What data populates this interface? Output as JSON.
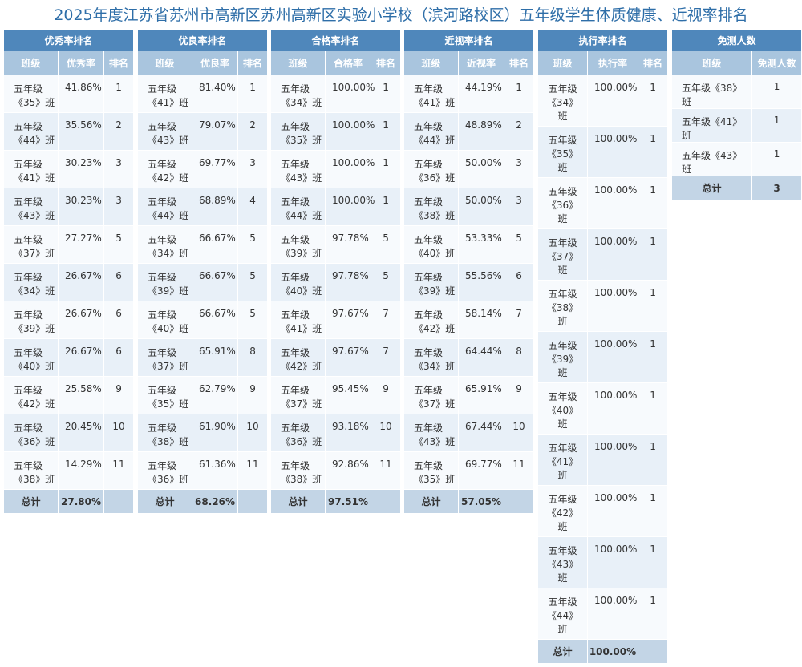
{
  "title": "2025年度江苏省苏州市高新区苏州高新区实验小学校（滨河路校区）五年级学生体质健康、近视率排名",
  "tables": [
    {
      "title": "优秀率排名",
      "headers": [
        "班级",
        "优秀率",
        "排名"
      ],
      "rows": [
        [
          "五年级《35》班",
          "41.86%",
          1
        ],
        [
          "五年级《44》班",
          "35.56%",
          2
        ],
        [
          "五年级《41》班",
          "30.23%",
          3
        ],
        [
          "五年级《43》班",
          "30.23%",
          3
        ],
        [
          "五年级《37》班",
          "27.27%",
          5
        ],
        [
          "五年级《34》班",
          "26.67%",
          6
        ],
        [
          "五年级《39》班",
          "26.67%",
          6
        ],
        [
          "五年级《40》班",
          "26.67%",
          6
        ],
        [
          "五年级《42》班",
          "25.58%",
          9
        ],
        [
          "五年级《36》班",
          "20.45%",
          10
        ],
        [
          "五年级《38》班",
          "14.29%",
          11
        ]
      ],
      "total": {
        "label": "总计",
        "value": "27.80%"
      }
    },
    {
      "title": "优良率排名",
      "headers": [
        "班级",
        "优良率",
        "排名"
      ],
      "rows": [
        [
          "五年级《41》班",
          "81.40%",
          1
        ],
        [
          "五年级《43》班",
          "79.07%",
          2
        ],
        [
          "五年级《42》班",
          "69.77%",
          3
        ],
        [
          "五年级《44》班",
          "68.89%",
          4
        ],
        [
          "五年级《34》班",
          "66.67%",
          5
        ],
        [
          "五年级《39》班",
          "66.67%",
          5
        ],
        [
          "五年级《40》班",
          "66.67%",
          5
        ],
        [
          "五年级《37》班",
          "65.91%",
          8
        ],
        [
          "五年级《35》班",
          "62.79%",
          9
        ],
        [
          "五年级《38》班",
          "61.90%",
          10
        ],
        [
          "五年级《36》班",
          "61.36%",
          11
        ]
      ],
      "total": {
        "label": "总计",
        "value": "68.26%"
      }
    },
    {
      "title": "合格率排名",
      "headers": [
        "班级",
        "合格率",
        "排名"
      ],
      "rows": [
        [
          "五年级《34》班",
          "100.00%",
          1
        ],
        [
          "五年级《35》班",
          "100.00%",
          1
        ],
        [
          "五年级《43》班",
          "100.00%",
          1
        ],
        [
          "五年级《44》班",
          "100.00%",
          1
        ],
        [
          "五年级《39》班",
          "97.78%",
          5
        ],
        [
          "五年级《40》班",
          "97.78%",
          5
        ],
        [
          "五年级《41》班",
          "97.67%",
          7
        ],
        [
          "五年级《42》班",
          "97.67%",
          7
        ],
        [
          "五年级《37》班",
          "95.45%",
          9
        ],
        [
          "五年级《36》班",
          "93.18%",
          10
        ],
        [
          "五年级《38》班",
          "92.86%",
          11
        ]
      ],
      "total": {
        "label": "总计",
        "value": "97.51%"
      }
    },
    {
      "title": "近视率排名",
      "headers": [
        "班级",
        "近视率",
        "排名"
      ],
      "rows": [
        [
          "五年级《41》班",
          "44.19%",
          1
        ],
        [
          "五年级《44》班",
          "48.89%",
          2
        ],
        [
          "五年级《36》班",
          "50.00%",
          3
        ],
        [
          "五年级《38》班",
          "50.00%",
          3
        ],
        [
          "五年级《40》班",
          "53.33%",
          5
        ],
        [
          "五年级《39》班",
          "55.56%",
          6
        ],
        [
          "五年级《42》班",
          "58.14%",
          7
        ],
        [
          "五年级《34》班",
          "64.44%",
          8
        ],
        [
          "五年级《37》班",
          "65.91%",
          9
        ],
        [
          "五年级《43》班",
          "67.44%",
          10
        ],
        [
          "五年级《35》班",
          "69.77%",
          11
        ]
      ],
      "total": {
        "label": "总计",
        "value": "57.05%"
      }
    },
    {
      "title": "执行率排名",
      "headers": [
        "班级",
        "执行率",
        "排名"
      ],
      "rows": [
        [
          "五年级《34》班",
          "100.00%",
          1
        ],
        [
          "五年级《35》班",
          "100.00%",
          1
        ],
        [
          "五年级《36》班",
          "100.00%",
          1
        ],
        [
          "五年级《37》班",
          "100.00%",
          1
        ],
        [
          "五年级《38》班",
          "100.00%",
          1
        ],
        [
          "五年级《39》班",
          "100.00%",
          1
        ],
        [
          "五年级《40》班",
          "100.00%",
          1
        ],
        [
          "五年级《41》班",
          "100.00%",
          1
        ],
        [
          "五年级《42》班",
          "100.00%",
          1
        ],
        [
          "五年级《43》班",
          "100.00%",
          1
        ],
        [
          "五年级《44》班",
          "100.00%",
          1
        ]
      ],
      "total": {
        "label": "总计",
        "value": "100.00%"
      }
    },
    {
      "title": "免测人数",
      "headers": [
        "班级",
        "免测人数"
      ],
      "rows": [
        [
          "五年级《38》班",
          1
        ],
        [
          "五年级《41》班",
          1
        ],
        [
          "五年级《43》班",
          1
        ]
      ],
      "total": {
        "label": "总计",
        "value": 3
      }
    }
  ]
}
